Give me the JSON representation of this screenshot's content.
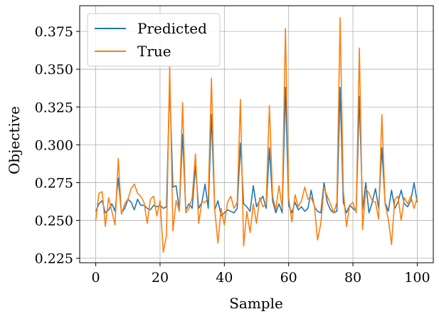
{
  "chart_data": {
    "type": "line",
    "xlabel": "Sample",
    "ylabel": "Objective",
    "xlim": [
      -5,
      105
    ],
    "ylim": [
      0.222,
      0.392
    ],
    "xticks": [
      0,
      20,
      40,
      60,
      80,
      100
    ],
    "yticks": [
      0.225,
      0.25,
      0.275,
      0.3,
      0.325,
      0.35,
      0.375
    ],
    "xtick_labels": [
      "0",
      "20",
      "40",
      "60",
      "80",
      "100"
    ],
    "ytick_labels": [
      "0.225",
      "0.250",
      "0.275",
      "0.300",
      "0.325",
      "0.350",
      "0.375"
    ],
    "grid": true,
    "legend_position": "top-left",
    "x": [
      0,
      1,
      2,
      3,
      4,
      5,
      6,
      7,
      8,
      9,
      10,
      11,
      12,
      13,
      14,
      15,
      16,
      17,
      18,
      19,
      20,
      21,
      22,
      23,
      24,
      25,
      26,
      27,
      28,
      29,
      30,
      31,
      32,
      33,
      34,
      35,
      36,
      37,
      38,
      39,
      40,
      41,
      42,
      43,
      44,
      45,
      46,
      47,
      48,
      49,
      50,
      51,
      52,
      53,
      54,
      55,
      56,
      57,
      58,
      59,
      60,
      61,
      62,
      63,
      64,
      65,
      66,
      67,
      68,
      69,
      70,
      71,
      72,
      73,
      74,
      75,
      76,
      77,
      78,
      79,
      80,
      81,
      82,
      83,
      84,
      85,
      86,
      87,
      88,
      89,
      90,
      91,
      92,
      93,
      94,
      95,
      96,
      97,
      98,
      99,
      100
    ],
    "series": [
      {
        "name": "Predicted",
        "color": "#1f77b4",
        "values": [
          0.256,
          0.261,
          0.263,
          0.255,
          0.257,
          0.261,
          0.256,
          0.278,
          0.255,
          0.258,
          0.264,
          0.262,
          0.257,
          0.264,
          0.26,
          0.26,
          0.258,
          0.257,
          0.26,
          0.259,
          0.26,
          0.258,
          0.259,
          0.34,
          0.272,
          0.273,
          0.257,
          0.307,
          0.257,
          0.261,
          0.258,
          0.286,
          0.258,
          0.262,
          0.274,
          0.258,
          0.32,
          0.257,
          0.263,
          0.253,
          0.255,
          0.257,
          0.256,
          0.255,
          0.258,
          0.301,
          0.261,
          0.259,
          0.256,
          0.273,
          0.259,
          0.263,
          0.266,
          0.258,
          0.298,
          0.263,
          0.255,
          0.261,
          0.255,
          0.338,
          0.26,
          0.255,
          0.262,
          0.257,
          0.259,
          0.256,
          0.258,
          0.27,
          0.259,
          0.256,
          0.255,
          0.275,
          0.262,
          0.257,
          0.255,
          0.256,
          0.338,
          0.262,
          0.255,
          0.26,
          0.258,
          0.256,
          0.332,
          0.257,
          0.275,
          0.255,
          0.262,
          0.271,
          0.258,
          0.298,
          0.262,
          0.256,
          0.27,
          0.258,
          0.262,
          0.27,
          0.261,
          0.259,
          0.263,
          0.275,
          0.262
        ]
      },
      {
        "name": "True",
        "color": "#ff7f0e",
        "values": [
          0.25,
          0.268,
          0.269,
          0.246,
          0.265,
          0.256,
          0.247,
          0.291,
          0.254,
          0.261,
          0.264,
          0.271,
          0.274,
          0.268,
          0.266,
          0.262,
          0.248,
          0.264,
          0.266,
          0.253,
          0.263,
          0.229,
          0.24,
          0.352,
          0.243,
          0.263,
          0.256,
          0.328,
          0.255,
          0.258,
          0.265,
          0.294,
          0.248,
          0.262,
          0.262,
          0.265,
          0.344,
          0.257,
          0.235,
          0.258,
          0.247,
          0.262,
          0.266,
          0.258,
          0.262,
          0.33,
          0.233,
          0.256,
          0.242,
          0.261,
          0.248,
          0.265,
          0.259,
          0.261,
          0.326,
          0.266,
          0.257,
          0.273,
          0.258,
          0.377,
          0.265,
          0.249,
          0.267,
          0.259,
          0.263,
          0.272,
          0.264,
          0.265,
          0.26,
          0.237,
          0.248,
          0.272,
          0.266,
          0.261,
          0.255,
          0.262,
          0.384,
          0.27,
          0.246,
          0.26,
          0.262,
          0.255,
          0.364,
          0.244,
          0.271,
          0.268,
          0.263,
          0.262,
          0.251,
          0.32,
          0.261,
          0.251,
          0.234,
          0.264,
          0.266,
          0.25,
          0.265,
          0.261,
          0.266,
          0.258,
          0.265
        ]
      }
    ]
  }
}
